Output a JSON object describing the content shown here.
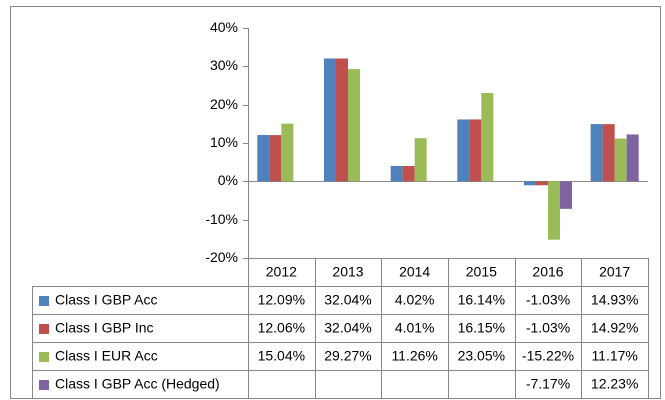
{
  "chart_data": {
    "type": "bar",
    "categories": [
      "2012",
      "2013",
      "2014",
      "2015",
      "2016",
      "2017"
    ],
    "series": [
      {
        "name": "Class I GBP Acc",
        "color": "#4f81bd",
        "values": [
          12.09,
          32.04,
          4.02,
          16.14,
          -1.03,
          14.93
        ],
        "value_labels": [
          "12.09%",
          "32.04%",
          "4.02%",
          "16.14%",
          "-1.03%",
          "14.93%"
        ]
      },
      {
        "name": "Class I GBP Inc",
        "color": "#c0504d",
        "values": [
          12.06,
          32.04,
          4.01,
          16.15,
          -1.03,
          14.92
        ],
        "value_labels": [
          "12.06%",
          "32.04%",
          "4.01%",
          "16.15%",
          "-1.03%",
          "14.92%"
        ]
      },
      {
        "name": "Class I EUR Acc",
        "color": "#9bbb59",
        "values": [
          15.04,
          29.27,
          11.26,
          23.05,
          -15.22,
          11.17
        ],
        "value_labels": [
          "15.04%",
          "29.27%",
          "11.26%",
          "23.05%",
          "-15.22%",
          "11.17%"
        ]
      },
      {
        "name": "Class I GBP Acc (Hedged)",
        "color": "#8064a2",
        "values": [
          null,
          null,
          null,
          null,
          -7.17,
          12.23
        ],
        "value_labels": [
          null,
          null,
          null,
          null,
          "-7.17%",
          "12.23%"
        ]
      }
    ],
    "ylim": [
      -20,
      40
    ],
    "yticks": [
      {
        "value": -20,
        "label": "-20%"
      },
      {
        "value": -10,
        "label": "-10%"
      },
      {
        "value": 0,
        "label": "0%"
      },
      {
        "value": 10,
        "label": "10%"
      },
      {
        "value": 20,
        "label": "20%"
      },
      {
        "value": 30,
        "label": "30%"
      },
      {
        "value": 40,
        "label": "40%"
      }
    ]
  }
}
